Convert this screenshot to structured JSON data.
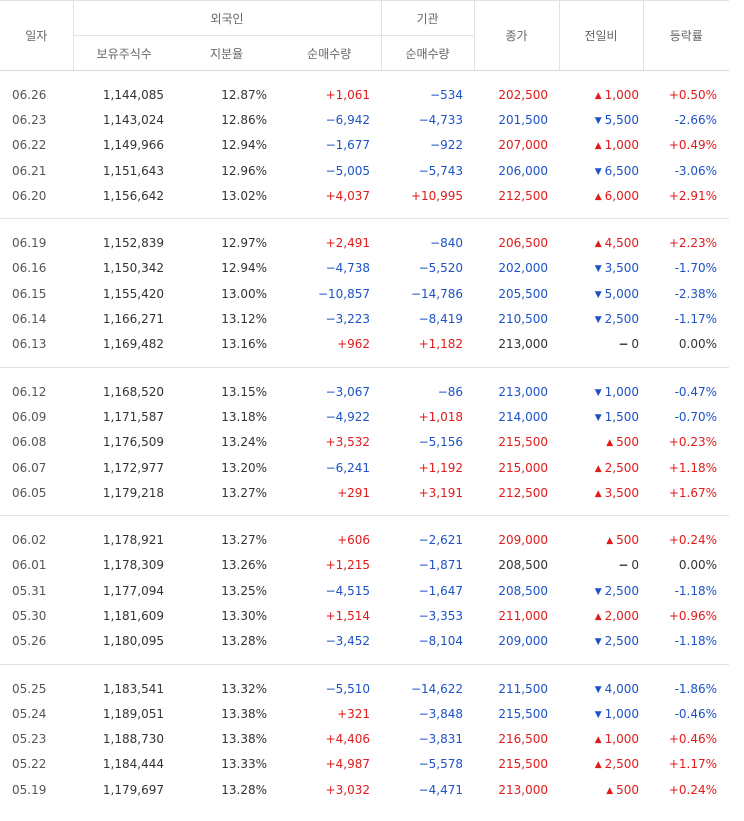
{
  "header": {
    "date": "일자",
    "foreign_group": "외국인",
    "inst_group": "기관",
    "close": "종가",
    "change": "전일비",
    "rate": "등락률",
    "holdings": "보유주식수",
    "share": "지분율",
    "foreign_net": "순매수량",
    "inst_net": "순매수량"
  },
  "colors": {
    "up": "#e21a1a",
    "down": "#1d52c7",
    "flat": "#333333",
    "border": "#e2e2e2"
  },
  "rows": [
    {
      "date": "06.26",
      "holdings": "1,144,085",
      "share": "12.87%",
      "foreign_net": "+1,061",
      "inst_net": "−534",
      "close": "202,500",
      "dir": "up",
      "change": "1,000",
      "rate": "+0.50%"
    },
    {
      "date": "06.23",
      "holdings": "1,143,024",
      "share": "12.86%",
      "foreign_net": "−6,942",
      "inst_net": "−4,733",
      "close": "201,500",
      "dir": "down",
      "change": "5,500",
      "rate": "-2.66%"
    },
    {
      "date": "06.22",
      "holdings": "1,149,966",
      "share": "12.94%",
      "foreign_net": "−1,677",
      "inst_net": "−922",
      "close": "207,000",
      "dir": "up",
      "change": "1,000",
      "rate": "+0.49%"
    },
    {
      "date": "06.21",
      "holdings": "1,151,643",
      "share": "12.96%",
      "foreign_net": "−5,005",
      "inst_net": "−5,743",
      "close": "206,000",
      "dir": "down",
      "change": "6,500",
      "rate": "-3.06%"
    },
    {
      "date": "06.20",
      "holdings": "1,156,642",
      "share": "13.02%",
      "foreign_net": "+4,037",
      "inst_net": "+10,995",
      "close": "212,500",
      "dir": "up",
      "change": "6,000",
      "rate": "+2.91%"
    },
    {
      "date": "06.19",
      "holdings": "1,152,839",
      "share": "12.97%",
      "foreign_net": "+2,491",
      "inst_net": "−840",
      "close": "206,500",
      "dir": "up",
      "change": "4,500",
      "rate": "+2.23%"
    },
    {
      "date": "06.16",
      "holdings": "1,150,342",
      "share": "12.94%",
      "foreign_net": "−4,738",
      "inst_net": "−5,520",
      "close": "202,000",
      "dir": "down",
      "change": "3,500",
      "rate": "-1.70%"
    },
    {
      "date": "06.15",
      "holdings": "1,155,420",
      "share": "13.00%",
      "foreign_net": "−10,857",
      "inst_net": "−14,786",
      "close": "205,500",
      "dir": "down",
      "change": "5,000",
      "rate": "-2.38%"
    },
    {
      "date": "06.14",
      "holdings": "1,166,271",
      "share": "13.12%",
      "foreign_net": "−3,223",
      "inst_net": "−8,419",
      "close": "210,500",
      "dir": "down",
      "change": "2,500",
      "rate": "-1.17%"
    },
    {
      "date": "06.13",
      "holdings": "1,169,482",
      "share": "13.16%",
      "foreign_net": "+962",
      "inst_net": "+1,182",
      "close": "213,000",
      "dir": "flat",
      "change": "0",
      "rate": "0.00%"
    },
    {
      "date": "06.12",
      "holdings": "1,168,520",
      "share": "13.15%",
      "foreign_net": "−3,067",
      "inst_net": "−86",
      "close": "213,000",
      "dir": "down",
      "change": "1,000",
      "rate": "-0.47%"
    },
    {
      "date": "06.09",
      "holdings": "1,171,587",
      "share": "13.18%",
      "foreign_net": "−4,922",
      "inst_net": "+1,018",
      "close": "214,000",
      "dir": "down",
      "change": "1,500",
      "rate": "-0.70%"
    },
    {
      "date": "06.08",
      "holdings": "1,176,509",
      "share": "13.24%",
      "foreign_net": "+3,532",
      "inst_net": "−5,156",
      "close": "215,500",
      "dir": "up",
      "change": "500",
      "rate": "+0.23%"
    },
    {
      "date": "06.07",
      "holdings": "1,172,977",
      "share": "13.20%",
      "foreign_net": "−6,241",
      "inst_net": "+1,192",
      "close": "215,000",
      "dir": "up",
      "change": "2,500",
      "rate": "+1.18%"
    },
    {
      "date": "06.05",
      "holdings": "1,179,218",
      "share": "13.27%",
      "foreign_net": "+291",
      "inst_net": "+3,191",
      "close": "212,500",
      "dir": "up",
      "change": "3,500",
      "rate": "+1.67%"
    },
    {
      "date": "06.02",
      "holdings": "1,178,921",
      "share": "13.27%",
      "foreign_net": "+606",
      "inst_net": "−2,621",
      "close": "209,000",
      "dir": "up",
      "change": "500",
      "rate": "+0.24%"
    },
    {
      "date": "06.01",
      "holdings": "1,178,309",
      "share": "13.26%",
      "foreign_net": "+1,215",
      "inst_net": "−1,871",
      "close": "208,500",
      "dir": "flat",
      "change": "0",
      "rate": "0.00%"
    },
    {
      "date": "05.31",
      "holdings": "1,177,094",
      "share": "13.25%",
      "foreign_net": "−4,515",
      "inst_net": "−1,647",
      "close": "208,500",
      "dir": "down",
      "change": "2,500",
      "rate": "-1.18%"
    },
    {
      "date": "05.30",
      "holdings": "1,181,609",
      "share": "13.30%",
      "foreign_net": "+1,514",
      "inst_net": "−3,353",
      "close": "211,000",
      "dir": "up",
      "change": "2,000",
      "rate": "+0.96%"
    },
    {
      "date": "05.26",
      "holdings": "1,180,095",
      "share": "13.28%",
      "foreign_net": "−3,452",
      "inst_net": "−8,104",
      "close": "209,000",
      "dir": "down",
      "change": "2,500",
      "rate": "-1.18%"
    },
    {
      "date": "05.25",
      "holdings": "1,183,541",
      "share": "13.32%",
      "foreign_net": "−5,510",
      "inst_net": "−14,622",
      "close": "211,500",
      "dir": "down",
      "change": "4,000",
      "rate": "-1.86%"
    },
    {
      "date": "05.24",
      "holdings": "1,189,051",
      "share": "13.38%",
      "foreign_net": "+321",
      "inst_net": "−3,848",
      "close": "215,500",
      "dir": "down",
      "change": "1,000",
      "rate": "-0.46%"
    },
    {
      "date": "05.23",
      "holdings": "1,188,730",
      "share": "13.38%",
      "foreign_net": "+4,406",
      "inst_net": "−3,831",
      "close": "216,500",
      "dir": "up",
      "change": "1,000",
      "rate": "+0.46%"
    },
    {
      "date": "05.22",
      "holdings": "1,184,444",
      "share": "13.33%",
      "foreign_net": "+4,987",
      "inst_net": "−5,578",
      "close": "215,500",
      "dir": "up",
      "change": "2,500",
      "rate": "+1.17%"
    },
    {
      "date": "05.19",
      "holdings": "1,179,697",
      "share": "13.28%",
      "foreign_net": "+3,032",
      "inst_net": "−4,471",
      "close": "213,000",
      "dir": "up",
      "change": "500",
      "rate": "+0.24%"
    }
  ]
}
